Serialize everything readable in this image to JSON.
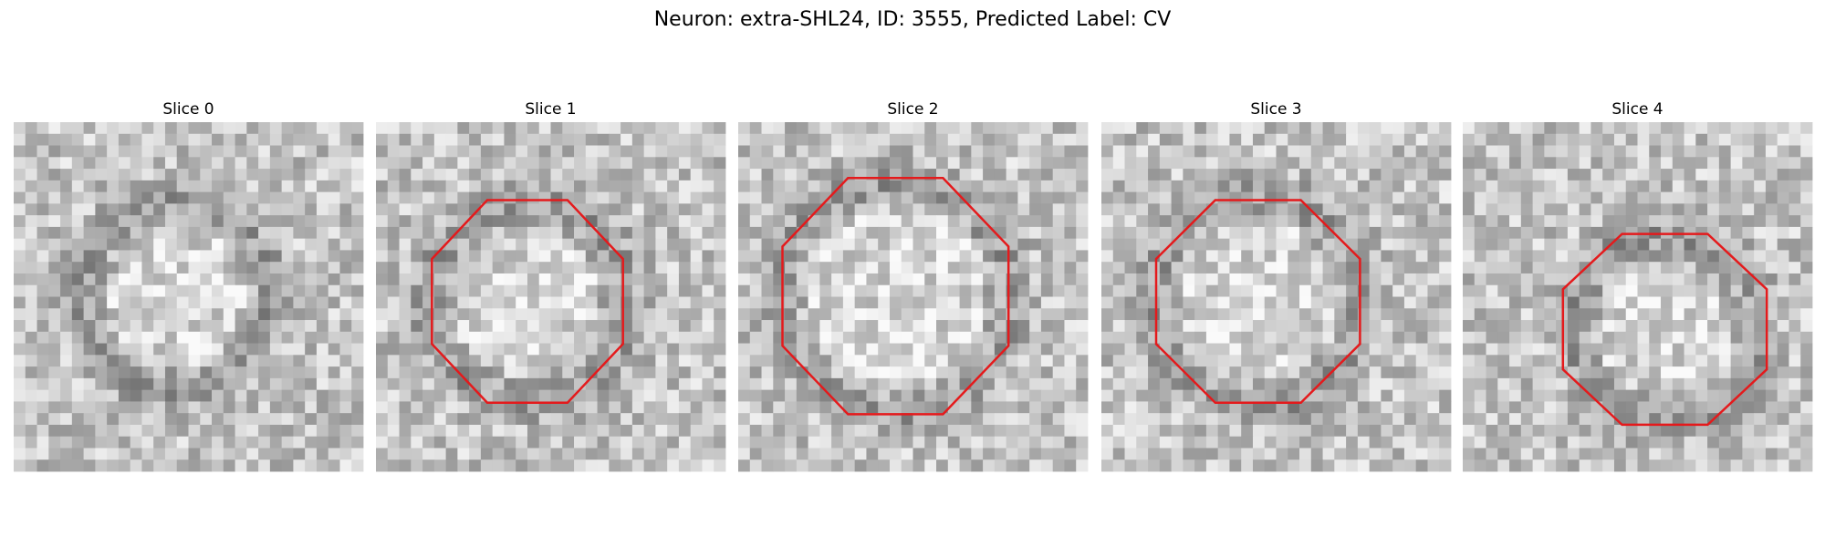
{
  "title": "Neuron: extra-SHL24, ID: 3555, Predicted Label: CV",
  "panels": [
    {
      "title": "Slice 0"
    },
    {
      "title": "Slice 1"
    },
    {
      "title": "Slice 2"
    },
    {
      "title": "Slice 3"
    },
    {
      "title": "Slice 4"
    }
  ]
}
